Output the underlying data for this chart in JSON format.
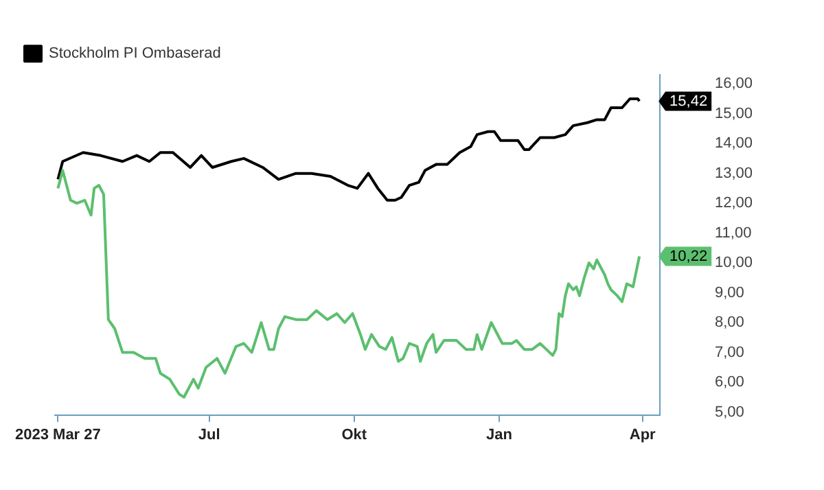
{
  "chart_data": {
    "type": "line",
    "legend": "top left",
    "grid": false,
    "marker": "none",
    "line_style": "solid",
    "xlim": [
      "2023-03-25",
      "2024-04-12"
    ],
    "xticks": [
      {
        "value": "2023-03-27",
        "label": "2023 Mar 27"
      },
      {
        "value": "2023-07-01",
        "label": "Jul"
      },
      {
        "value": "2023-10-01",
        "label": "Okt"
      },
      {
        "value": "2024-01-01",
        "label": "Jan"
      },
      {
        "value": "2024-04-01",
        "label": "Apr"
      }
    ],
    "ylim": [
      4.9,
      16.3
    ],
    "yticks": [
      {
        "value": 5,
        "label": "5,00"
      },
      {
        "value": 6,
        "label": "6,00"
      },
      {
        "value": 7,
        "label": "7,00"
      },
      {
        "value": 8,
        "label": "8,00"
      },
      {
        "value": 9,
        "label": "9,00"
      },
      {
        "value": 10,
        "label": "10,00"
      },
      {
        "value": 11,
        "label": "11,00"
      },
      {
        "value": 12,
        "label": "12,00"
      },
      {
        "value": 13,
        "label": "13,00"
      },
      {
        "value": 14,
        "label": "14,00"
      },
      {
        "value": 15,
        "label": "15,00"
      },
      {
        "value": 16,
        "label": "16,00"
      }
    ],
    "series": [
      {
        "color": "#5cbf6f",
        "x": [
          "2023-03-27",
          "2023-03-30",
          "2023-04-04",
          "2023-04-08",
          "2023-04-13",
          "2023-04-17",
          "2023-04-19",
          "2023-04-22",
          "2023-04-25",
          "2023-04-28",
          "2023-05-02",
          "2023-05-07",
          "2023-05-14",
          "2023-05-21",
          "2023-05-28",
          "2023-05-31",
          "2023-06-06",
          "2023-06-12",
          "2023-06-15",
          "2023-06-21",
          "2023-06-24",
          "2023-06-29",
          "2023-07-06",
          "2023-07-11",
          "2023-07-18",
          "2023-07-23",
          "2023-07-28",
          "2023-08-03",
          "2023-08-08",
          "2023-08-11",
          "2023-08-14",
          "2023-08-18",
          "2023-08-25",
          "2023-09-01",
          "2023-09-07",
          "2023-09-14",
          "2023-09-20",
          "2023-09-25",
          "2023-09-30",
          "2023-10-05",
          "2023-10-08",
          "2023-10-12",
          "2023-10-17",
          "2023-10-21",
          "2023-10-25",
          "2023-10-29",
          "2023-11-01",
          "2023-11-05",
          "2023-11-10",
          "2023-11-12",
          "2023-11-16",
          "2023-11-20",
          "2023-11-22",
          "2023-11-27",
          "2023-12-05",
          "2023-12-11",
          "2023-12-16",
          "2023-12-18",
          "2023-12-21",
          "2023-12-27",
          "2024-01-03",
          "2024-01-09",
          "2024-01-12",
          "2024-01-17",
          "2024-01-22",
          "2024-01-27",
          "2024-01-31",
          "2024-02-04",
          "2024-02-06",
          "2024-02-08",
          "2024-02-10",
          "2024-02-12",
          "2024-02-14",
          "2024-02-17",
          "2024-02-19",
          "2024-02-21",
          "2024-02-24",
          "2024-02-27",
          "2024-03-01",
          "2024-03-03",
          "2024-03-08",
          "2024-03-10",
          "2024-03-12",
          "2024-03-16",
          "2024-03-19",
          "2024-03-22",
          "2024-03-26",
          "2024-03-30"
        ],
        "values": [
          12.5,
          13.1,
          12.1,
          12.0,
          12.1,
          11.6,
          12.5,
          12.6,
          12.3,
          8.1,
          7.8,
          7.0,
          7.0,
          6.8,
          6.8,
          6.3,
          6.1,
          5.6,
          5.5,
          6.1,
          5.8,
          6.5,
          6.8,
          6.3,
          7.2,
          7.3,
          7.0,
          8.0,
          7.1,
          7.1,
          7.8,
          8.2,
          8.1,
          8.1,
          8.4,
          8.1,
          8.3,
          8.0,
          8.3,
          7.6,
          7.1,
          7.6,
          7.2,
          7.1,
          7.5,
          6.7,
          6.8,
          7.3,
          7.2,
          6.7,
          7.3,
          7.6,
          7.0,
          7.4,
          7.4,
          7.1,
          7.1,
          7.6,
          7.1,
          8.0,
          7.3,
          7.3,
          7.4,
          7.1,
          7.1,
          7.3,
          7.1,
          6.9,
          7.1,
          8.3,
          8.2,
          8.9,
          9.3,
          9.1,
          9.2,
          8.9,
          9.5,
          10.0,
          9.8,
          10.1,
          9.6,
          9.3,
          9.1,
          8.9,
          8.7,
          9.3,
          9.2,
          10.22
        ]
      },
      {
        "name": "Stockholm PI Ombaserad",
        "color": "#000000",
        "x": [
          "2023-03-27",
          "2023-03-30",
          "2023-04-12",
          "2023-04-23",
          "2023-05-07",
          "2023-05-16",
          "2023-05-24",
          "2023-05-31",
          "2023-06-08",
          "2023-06-19",
          "2023-06-26",
          "2023-07-03",
          "2023-07-15",
          "2023-07-23",
          "2023-08-04",
          "2023-08-14",
          "2023-08-25",
          "2023-09-04",
          "2023-09-16",
          "2023-09-27",
          "2023-10-03",
          "2023-10-10",
          "2023-10-16",
          "2023-10-22",
          "2023-10-27",
          "2023-10-31",
          "2023-11-05",
          "2023-11-11",
          "2023-11-15",
          "2023-11-22",
          "2023-11-29",
          "2023-12-07",
          "2023-12-14",
          "2023-12-18",
          "2023-12-25",
          "2023-12-29",
          "2024-01-02",
          "2024-01-09",
          "2024-01-13",
          "2024-01-17",
          "2024-01-20",
          "2024-01-27",
          "2024-02-05",
          "2024-02-12",
          "2024-02-17",
          "2024-02-26",
          "2024-03-03",
          "2024-03-08",
          "2024-03-12",
          "2024-03-19",
          "2024-03-24",
          "2024-03-29",
          "2024-03-30"
        ],
        "values": [
          12.8,
          13.4,
          13.7,
          13.6,
          13.4,
          13.6,
          13.4,
          13.7,
          13.7,
          13.2,
          13.6,
          13.2,
          13.4,
          13.5,
          13.2,
          12.8,
          13.0,
          13.0,
          12.9,
          12.6,
          12.5,
          13.0,
          12.5,
          12.1,
          12.1,
          12.2,
          12.6,
          12.7,
          13.1,
          13.3,
          13.3,
          13.7,
          13.9,
          14.3,
          14.4,
          14.4,
          14.1,
          14.1,
          14.1,
          13.8,
          13.8,
          14.2,
          14.2,
          14.3,
          14.6,
          14.7,
          14.8,
          14.8,
          15.2,
          15.2,
          15.5,
          15.5,
          15.42
        ]
      }
    ],
    "annotations": [
      {
        "text": "10,22",
        "x": "2024-03-30",
        "y": 10.22
      },
      {
        "text": "15,42",
        "x": "2024-03-30",
        "y": 15.42
      }
    ]
  }
}
